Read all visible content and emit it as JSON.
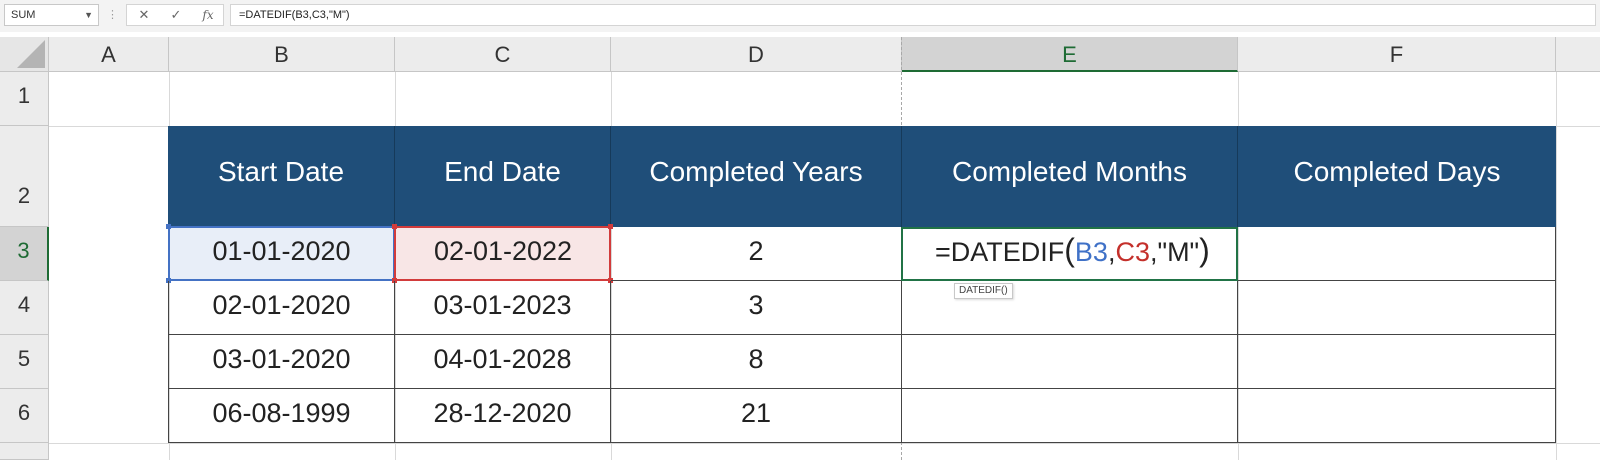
{
  "formula_bar": {
    "name_box": "SUM",
    "formula": "=DATEDIF(B3,C3,\"M\")",
    "cancel_icon": "close-icon",
    "enter_icon": "check-icon",
    "function_icon": "fx-icon",
    "cancel_glyph": "✕",
    "enter_glyph": "✓",
    "function_glyph": "fx"
  },
  "columns": [
    "A",
    "B",
    "C",
    "D",
    "E",
    "F"
  ],
  "rows": [
    "1",
    "2",
    "3",
    "4",
    "5",
    "6"
  ],
  "active_cell": "E3",
  "table": {
    "headers": [
      "Start Date",
      "End Date",
      "Completed Years",
      "Completed Months",
      "Completed Days"
    ],
    "rows": [
      [
        "01-01-2020",
        "02-01-2022",
        "2",
        "",
        ""
      ],
      [
        "02-01-2020",
        "03-01-2023",
        "3",
        "",
        ""
      ],
      [
        "03-01-2020",
        "04-01-2028",
        "8",
        "",
        ""
      ],
      [
        "06-08-1999",
        "28-12-2020",
        "21",
        "",
        ""
      ]
    ],
    "header_color": "#1f4e79"
  },
  "edit_cell": {
    "prefix": "=DATEDIF",
    "open_paren": "(",
    "ref1": "B3",
    "comma1": ",",
    "ref2": "C3",
    "rest": ",\"M\"",
    "close_paren": ")",
    "ref1_color": "#3f71c7",
    "ref2_color": "#c4302b"
  },
  "tooltip": "DATEDIF()"
}
